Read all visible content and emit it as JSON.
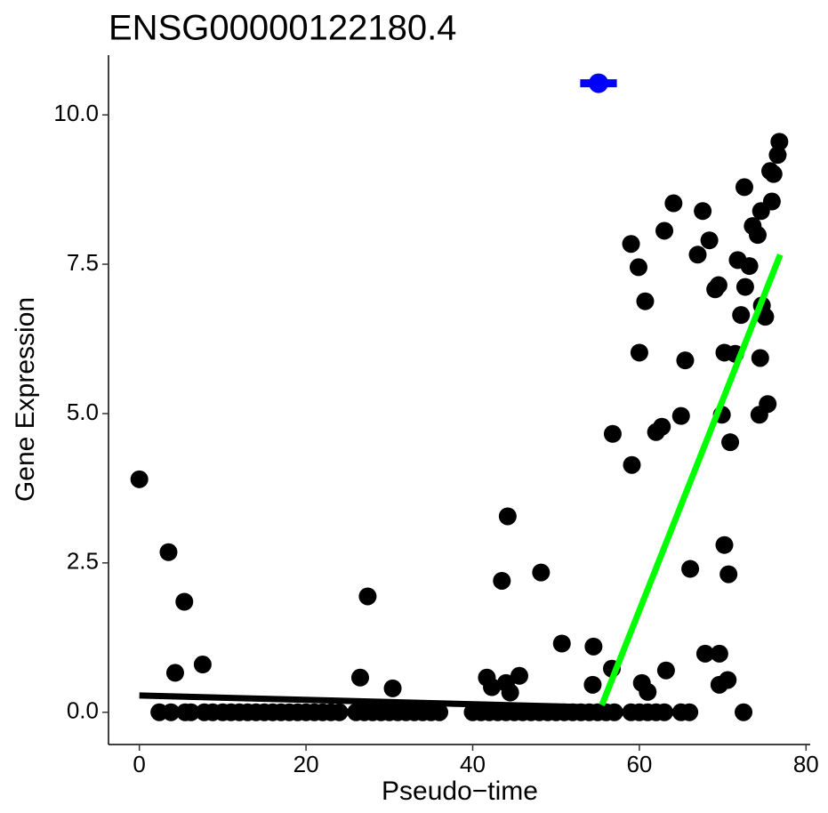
{
  "chart_data": {
    "type": "scatter",
    "title": "ENSG00000122180.4",
    "x_label": "Pseudo−time",
    "y_label": "Gene Expression",
    "color": "#000000",
    "x": [
      0,
      3.5,
      5.4,
      4.3,
      7.6,
      26.5,
      27.4,
      30.4,
      41.7,
      42.3,
      43.5,
      44.2,
      44.0,
      44.5,
      45.6,
      48.2,
      50.7,
      54.5,
      54.4,
      56.7,
      56.8,
      59.0,
      59.9,
      59.1,
      60.0,
      60.7,
      60.3,
      61.0,
      63.0,
      62.7,
      62.0,
      63.2,
      64.1,
      65.0,
      65.5,
      66.1,
      67.0,
      67.6,
      68.4,
      67.9,
      69.1,
      69.5,
      69.6,
      69.6,
      69.9,
      70.2,
      70.2,
      70.7,
      70.6,
      70.9,
      71.5,
      71.8,
      72.2,
      72.6,
      72.7,
      72.5,
      73.2,
      73.6,
      74.2,
      74.6,
      74.5,
      74.4,
      74.7,
      75.1,
      75.4,
      75.7,
      75.9,
      76.1,
      76.6,
      76.8,
      2.4,
      3.8,
      5.5,
      6.2,
      7.8,
      8.8,
      10,
      11,
      12,
      13,
      14,
      15,
      16,
      17,
      18,
      19,
      20,
      21,
      22,
      23,
      24,
      26,
      27,
      28,
      29,
      30,
      31,
      32,
      33,
      34,
      35,
      36,
      40,
      41,
      42,
      43,
      44,
      45,
      46,
      47,
      48,
      49,
      50,
      51,
      52,
      53,
      54,
      55,
      56,
      57,
      59,
      60,
      61,
      62,
      63,
      65,
      66
    ],
    "y": [
      3.9,
      2.68,
      1.85,
      0.66,
      0.8,
      0.58,
      1.94,
      0.4,
      0.58,
      0.42,
      2.2,
      3.28,
      0.49,
      0.33,
      0.61,
      2.34,
      1.15,
      1.1,
      0.46,
      0.73,
      4.66,
      7.84,
      7.45,
      4.14,
      6.02,
      6.88,
      0.49,
      0.34,
      8.06,
      4.78,
      4.69,
      0.7,
      8.52,
      4.96,
      5.89,
      2.4,
      7.66,
      8.39,
      7.9,
      0.98,
      7.08,
      7.15,
      0.98,
      0.46,
      4.98,
      6.02,
      2.8,
      2.31,
      0.54,
      4.52,
      6.0,
      7.57,
      6.65,
      8.79,
      7.12,
      0,
      7.47,
      8.14,
      7.99,
      8.39,
      5.93,
      4.98,
      6.81,
      6.62,
      5.16,
      9.06,
      8.55,
      9.01,
      9.33,
      9.55,
      0,
      0,
      0,
      0,
      0,
      0,
      0,
      0,
      0,
      0,
      0,
      0,
      0,
      0,
      0,
      0,
      0,
      0,
      0,
      0,
      0,
      0,
      0,
      0,
      0,
      0,
      0,
      0,
      0,
      0,
      0,
      0,
      0,
      0,
      0,
      0,
      0,
      0,
      0,
      0,
      0,
      0,
      0,
      0,
      0,
      0,
      0,
      0,
      0,
      0,
      0,
      0,
      0,
      0,
      0,
      0,
      0
    ],
    "lines": [
      {
        "x": [
          0,
          55
        ],
        "y": [
          0.28,
          0.08
        ],
        "color": "#000000"
      },
      {
        "x": [
          55.5,
          76.9
        ],
        "y": [
          0.12,
          7.66
        ],
        "color": "#00ff00"
      }
    ],
    "point": {
      "x": 55.1,
      "y": 10.53,
      "xerr": 2.2,
      "color": "#0000ff"
    },
    "xlim": [
      -3.7,
      80.5
    ],
    "ylim": [
      -0.54,
      11.0
    ],
    "xticks": [
      0,
      20,
      40,
      60,
      80
    ],
    "yticks": [
      {
        "value": 0,
        "label": "0.0"
      },
      2.5,
      {
        "value": 5,
        "label": "5.0"
      },
      7.5,
      {
        "value": 10,
        "label": "10.0"
      }
    ],
    "grid": false
  }
}
